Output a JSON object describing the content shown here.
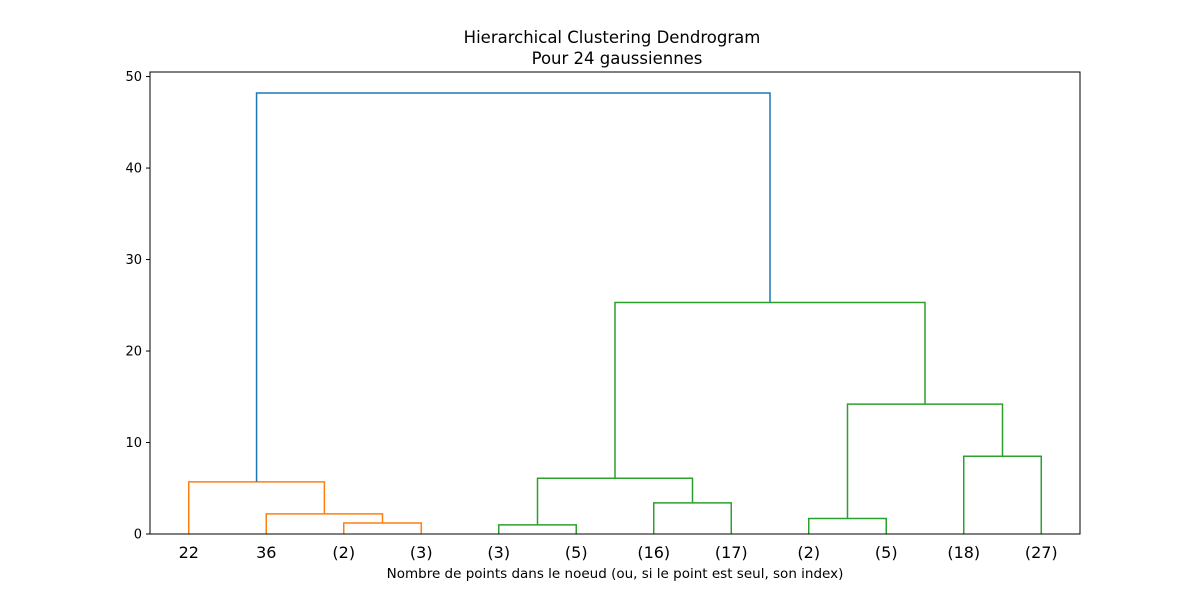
{
  "chart_data": {
    "type": "dendrogram",
    "title": "Hierarchical Clustering Dendrogram",
    "subtitle": "Pour 24 gaussiennes",
    "xlabel": "Nombre de points dans le noeud (ou, si le point est seul, son index)",
    "ylabel": "",
    "ylim": [
      0,
      50.5
    ],
    "yticks": [
      0,
      10,
      20,
      30,
      40,
      50
    ],
    "leaves": [
      "22",
      "36",
      "(2)",
      "(3)",
      "(3)",
      "(5)",
      "(16)",
      "(17)",
      "(2)",
      "(5)",
      "(18)",
      "(27)"
    ],
    "colors": {
      "cluster_1": "#ff7f0e",
      "cluster_2": "#2ca02c",
      "root": "#1f77b4"
    },
    "merges": [
      {
        "left": 2,
        "right": 3,
        "height": 1.2,
        "color": "cluster_1"
      },
      {
        "left": 1,
        "right": "m0",
        "height": 2.2,
        "color": "cluster_1"
      },
      {
        "left": 0,
        "right": "m1",
        "height": 5.7,
        "color": "cluster_1"
      },
      {
        "left": 4,
        "right": 5,
        "height": 1.0,
        "color": "cluster_2"
      },
      {
        "left": 6,
        "right": 7,
        "height": 3.4,
        "color": "cluster_2"
      },
      {
        "left": "m3",
        "right": "m4",
        "height": 6.1,
        "color": "cluster_2"
      },
      {
        "left": 8,
        "right": 9,
        "height": 1.7,
        "color": "cluster_2"
      },
      {
        "left": 10,
        "right": 11,
        "height": 8.5,
        "color": "cluster_2"
      },
      {
        "left": "m6",
        "right": "m7",
        "height": 14.2,
        "color": "cluster_2"
      },
      {
        "left": "m5",
        "right": "m8",
        "height": 25.3,
        "color": "cluster_2"
      },
      {
        "left": "m2",
        "right": "m9",
        "height": 48.2,
        "color": "root"
      }
    ]
  }
}
